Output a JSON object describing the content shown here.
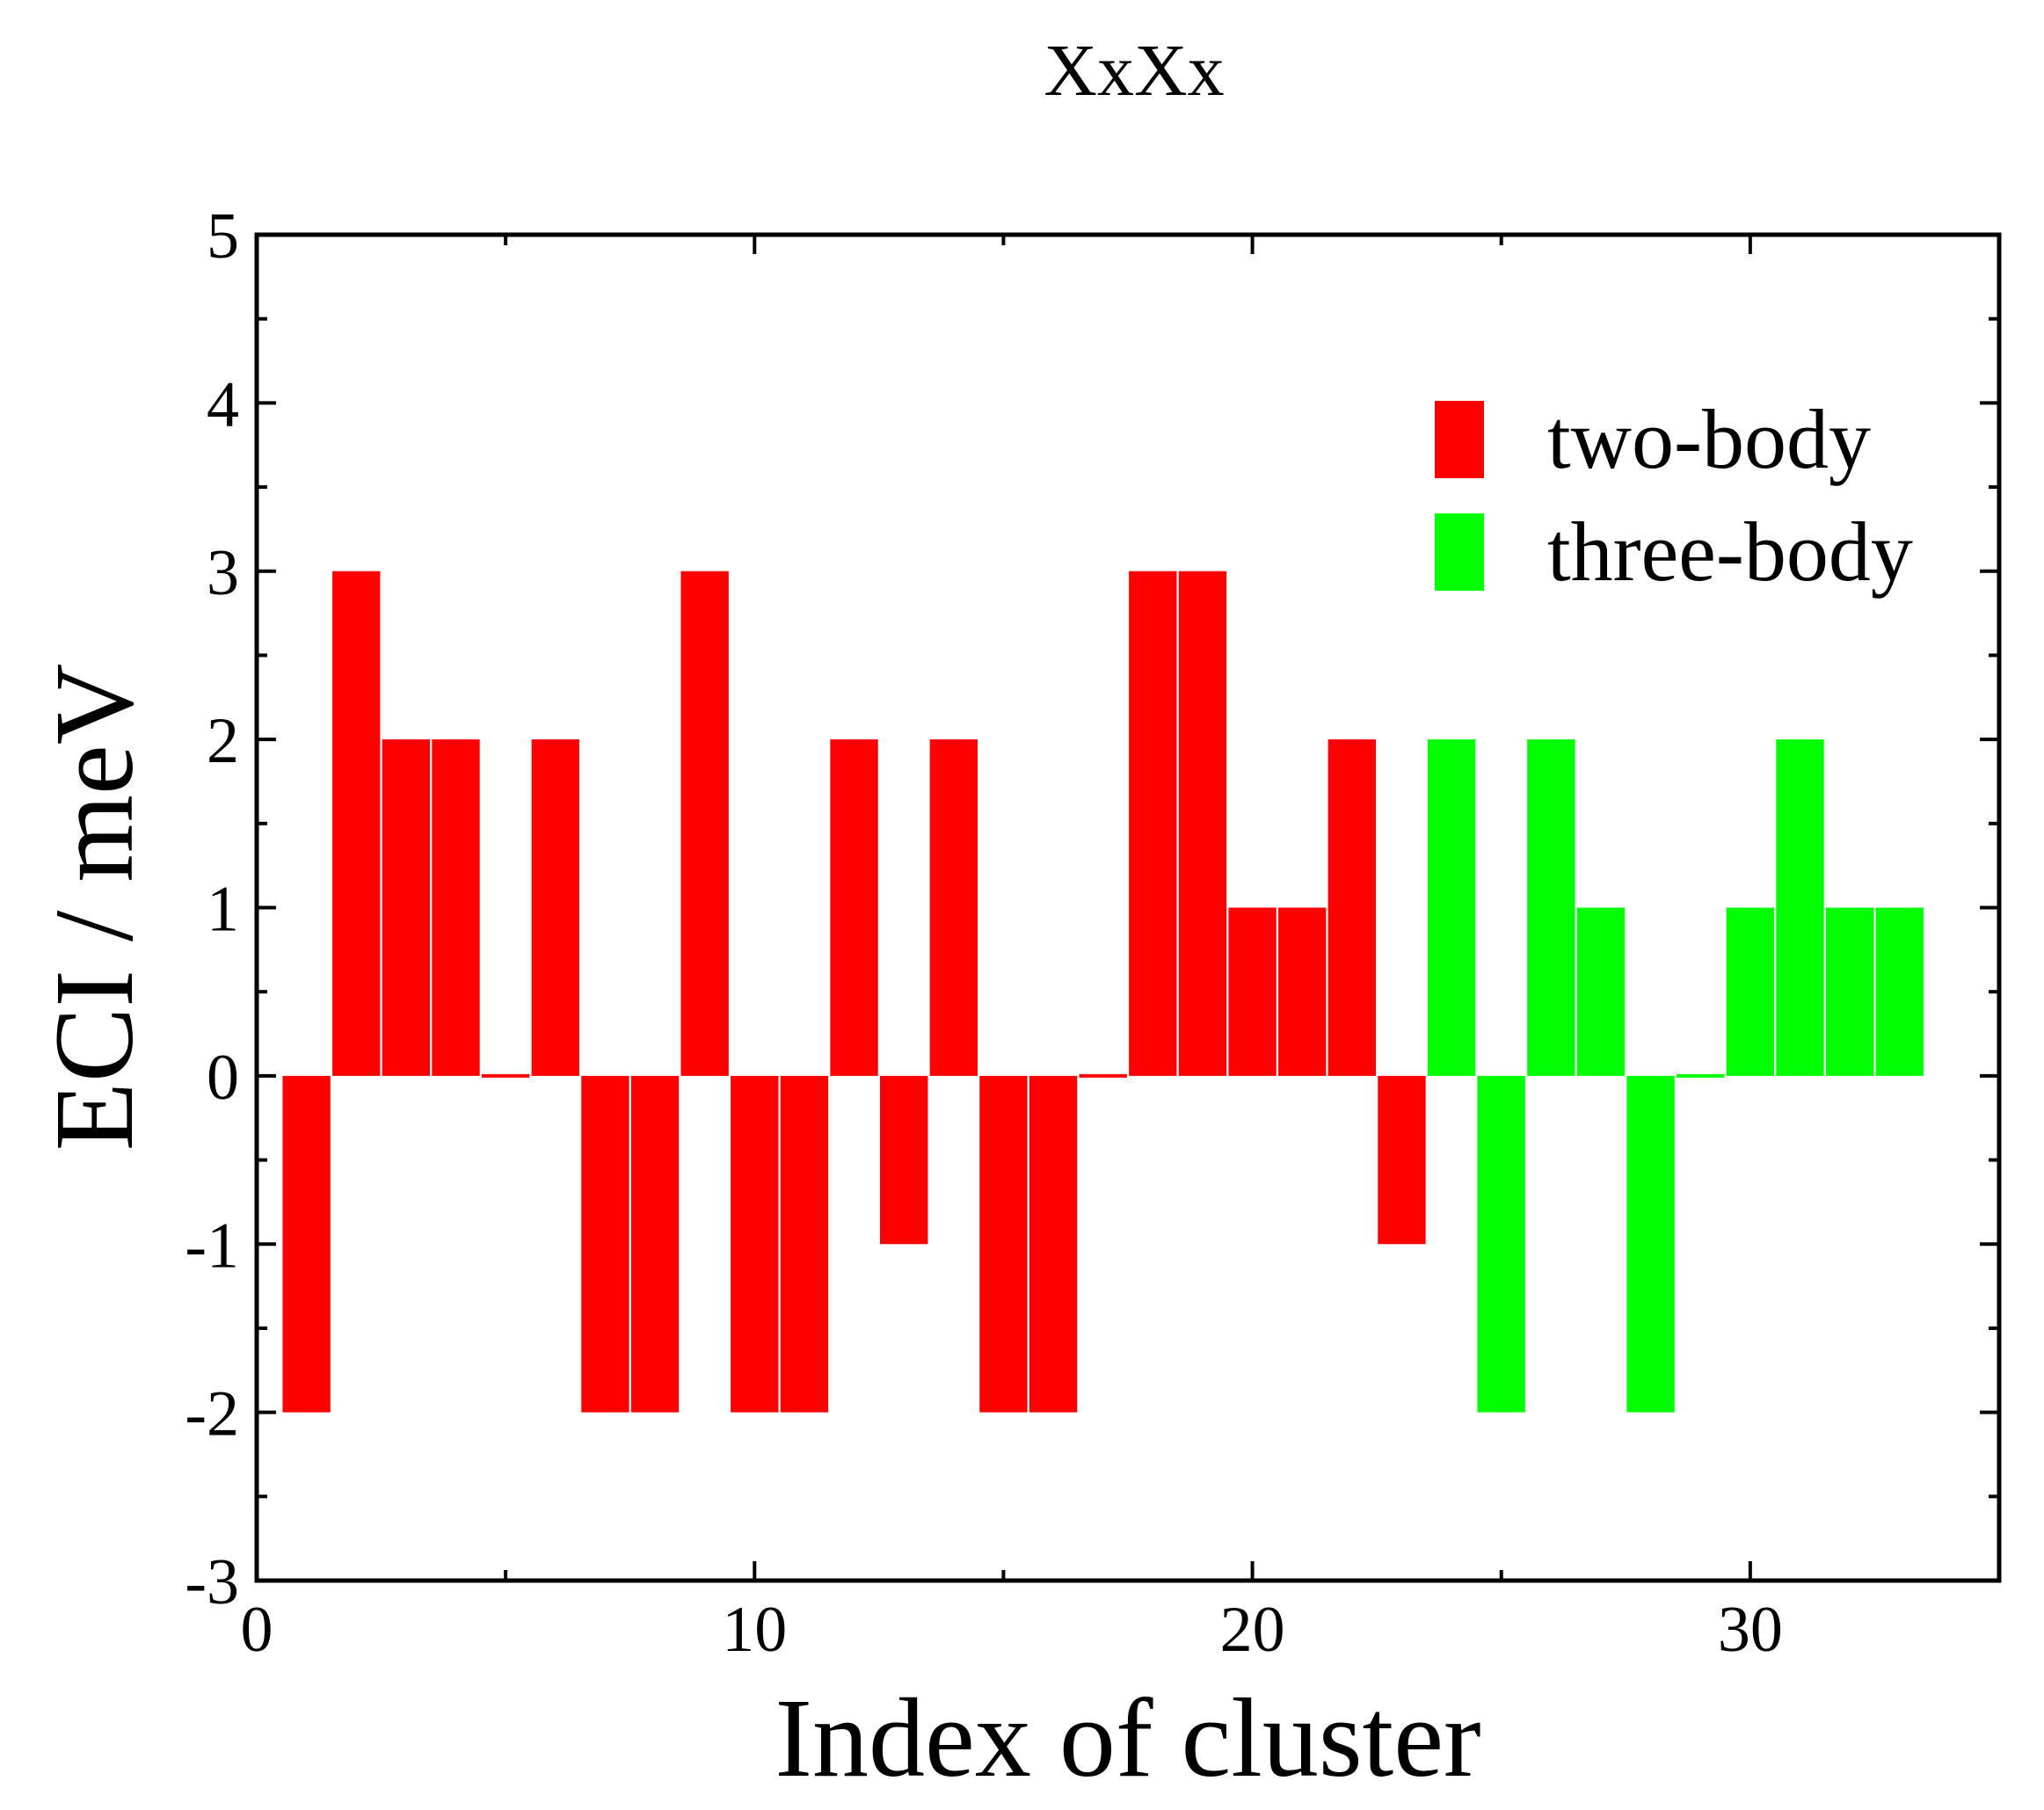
{
  "chart_data": {
    "type": "bar",
    "title": "XxXx",
    "xlabel": "Index of cluster",
    "ylabel": "ECI / meV",
    "xlim": [
      0,
      35
    ],
    "ylim": [
      -3,
      5
    ],
    "x_ticks": [
      0,
      10,
      20,
      30
    ],
    "x_minor_ticks": [
      5,
      15,
      25
    ],
    "y_ticks": [
      -3,
      -2,
      -1,
      0,
      1,
      2,
      3,
      4,
      5
    ],
    "y_tick_labels": [
      "-3",
      "-2",
      "-1",
      "0",
      "1",
      "2",
      "3",
      "4",
      "5"
    ],
    "x_tick_labels": [
      "0",
      "10",
      "20",
      "30"
    ],
    "grid": false,
    "legend_position": "top-right",
    "series": [
      {
        "name": "two-body",
        "color": "#ff0000",
        "x": [
          1,
          2,
          3,
          4,
          5,
          6,
          7,
          8,
          9,
          10,
          11,
          12,
          13,
          14,
          15,
          16,
          17,
          18,
          19,
          20,
          21,
          22,
          23
        ],
        "values": [
          -2,
          3,
          2,
          2,
          0,
          2,
          -2,
          -2,
          3,
          -2,
          -2,
          2,
          -1,
          2,
          -2,
          -2,
          0,
          3,
          3,
          1,
          1,
          2,
          -1
        ]
      },
      {
        "name": "three-body",
        "color": "#00ff00",
        "x": [
          24,
          25,
          26,
          27,
          28,
          29,
          30,
          31,
          32,
          33
        ],
        "values": [
          2,
          -2,
          2,
          1,
          -2,
          0,
          1,
          2,
          1,
          1
        ]
      }
    ]
  }
}
